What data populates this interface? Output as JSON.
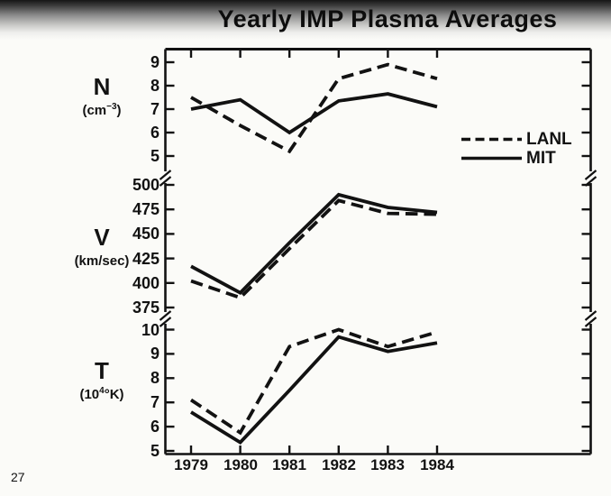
{
  "title": "Yearly IMP Plasma Averages",
  "page": {
    "number": "27"
  },
  "colors": {
    "ink": "#121212",
    "paper": "#fbfbf8"
  },
  "legend": {
    "items": [
      {
        "label": "LANL",
        "style": "dashed"
      },
      {
        "label": "MIT",
        "style": "solid"
      }
    ]
  },
  "chart_data": {
    "type": "line",
    "title": "Yearly IMP Plasma Averages",
    "x": [
      1979,
      1980,
      1981,
      1982,
      1983,
      1984
    ],
    "x_labels": [
      "1979",
      "1980",
      "1981",
      "1982",
      "1983",
      "1984"
    ],
    "grid": false,
    "legend_position": "right of top panel",
    "panels": [
      {
        "symbol": "N",
        "unit_pre": "(cm",
        "unit_sup": "−3",
        "unit_post": ")",
        "ylabel": "N (cm^-3)",
        "yticks": [
          9,
          8,
          7,
          6,
          5
        ],
        "ylim": [
          4.6,
          9.6
        ],
        "series": [
          {
            "name": "LANL",
            "style": "dashed",
            "values": [
              7.5,
              6.3,
              5.2,
              8.3,
              8.9,
              8.3
            ]
          },
          {
            "name": "MIT",
            "style": "solid",
            "values": [
              7.0,
              7.4,
              6.0,
              7.35,
              7.65,
              7.1
            ]
          }
        ]
      },
      {
        "symbol": "V",
        "unit_pre": "(km/sec)",
        "unit_sup": "",
        "unit_post": "",
        "ylabel": "V (km/sec)",
        "yticks": [
          500,
          475,
          450,
          425,
          400,
          375
        ],
        "ylim": [
          367,
          507
        ],
        "series": [
          {
            "name": "LANL",
            "style": "dashed",
            "values": [
              402,
              385,
              435,
              484,
              471,
              470
            ]
          },
          {
            "name": "MIT",
            "style": "solid",
            "values": [
              417,
              390,
              441,
              490,
              477,
              472
            ]
          }
        ]
      },
      {
        "symbol": "T",
        "unit_pre": "(10",
        "unit_sup": "4",
        "unit_post": "°K)",
        "ylabel": "T (10^4 °K)",
        "yticks": [
          10,
          9,
          8,
          7,
          6,
          5
        ],
        "ylim": [
          4.9,
          10.4
        ],
        "series": [
          {
            "name": "LANL",
            "style": "dashed",
            "values": [
              7.1,
              5.75,
              9.3,
              10.0,
              9.3,
              9.9
            ]
          },
          {
            "name": "MIT",
            "style": "solid",
            "values": [
              6.6,
              5.35,
              7.5,
              9.7,
              9.1,
              9.45
            ]
          }
        ]
      }
    ]
  }
}
